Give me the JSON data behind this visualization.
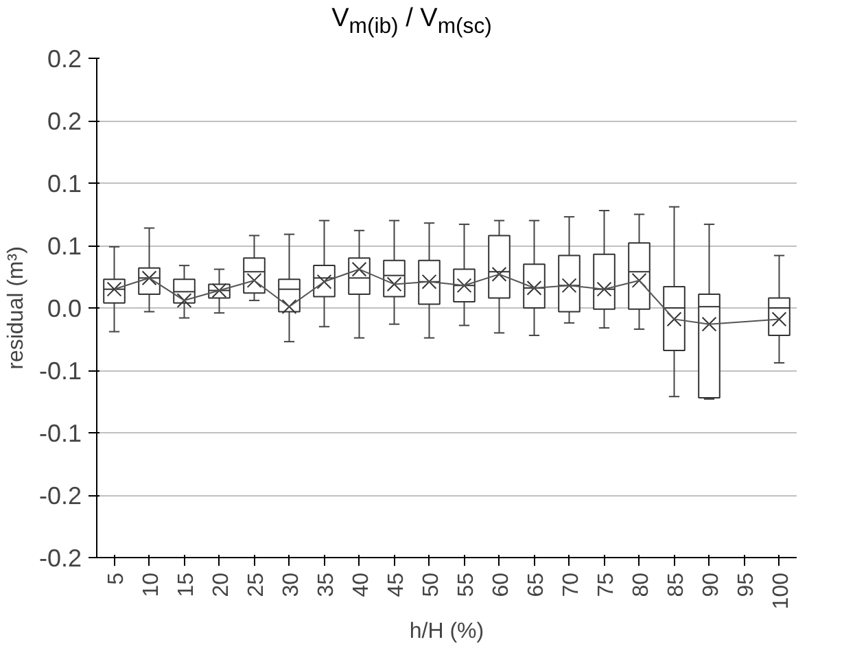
{
  "chart_data": {
    "type": "box",
    "title": "V$_{m(ib)}$ / V$_{m(sc)}$",
    "xlabel": "h/H (%)",
    "ylabel": "residual (m³)",
    "categories": [
      "5",
      "10",
      "15",
      "20",
      "25",
      "30",
      "35",
      "40",
      "45",
      "50",
      "55",
      "60",
      "65",
      "70",
      "75",
      "80",
      "85",
      "90",
      "95",
      "100"
    ],
    "boxes": [
      {
        "low": -0.019,
        "q1": 0.004,
        "median": 0.015,
        "q3": 0.023,
        "high": 0.049,
        "mean": 0.015
      },
      {
        "low": -0.003,
        "q1": 0.011,
        "median": 0.024,
        "q3": 0.032,
        "high": 0.064,
        "mean": 0.024
      },
      {
        "low": -0.008,
        "q1": 0.004,
        "median": 0.013,
        "q3": 0.023,
        "high": 0.034,
        "mean": 0.006
      },
      {
        "low": -0.004,
        "q1": 0.008,
        "median": 0.014,
        "q3": 0.019,
        "high": 0.031,
        "mean": 0.014
      },
      {
        "low": 0.006,
        "q1": 0.012,
        "median": 0.029,
        "q3": 0.04,
        "high": 0.058,
        "mean": 0.022
      },
      {
        "low": -0.027,
        "q1": -0.003,
        "median": 0.015,
        "q3": 0.023,
        "high": 0.059,
        "mean": 0.001
      },
      {
        "low": -0.015,
        "q1": 0.009,
        "median": 0.024,
        "q3": 0.034,
        "high": 0.07,
        "mean": 0.021
      },
      {
        "low": -0.024,
        "q1": 0.011,
        "median": 0.024,
        "q3": 0.04,
        "high": 0.062,
        "mean": 0.031
      },
      {
        "low": -0.013,
        "q1": 0.009,
        "median": 0.026,
        "q3": 0.038,
        "high": 0.07,
        "mean": 0.019
      },
      {
        "low": -0.024,
        "q1": 0.003,
        "median": 0.021,
        "q3": 0.038,
        "high": 0.068,
        "mean": 0.021
      },
      {
        "low": -0.014,
        "q1": 0.005,
        "median": 0.018,
        "q3": 0.031,
        "high": 0.067,
        "mean": 0.018
      },
      {
        "low": -0.02,
        "q1": 0.008,
        "median": 0.029,
        "q3": 0.058,
        "high": 0.07,
        "mean": 0.027
      },
      {
        "low": -0.022,
        "q1": 0,
        "median": 0.016,
        "q3": 0.035,
        "high": 0.07,
        "mean": 0.016
      },
      {
        "low": -0.012,
        "q1": -0.003,
        "median": 0.018,
        "q3": 0.042,
        "high": 0.073,
        "mean": 0.018
      },
      {
        "low": -0.016,
        "q1": -0.001,
        "median": 0.015,
        "q3": 0.043,
        "high": 0.078,
        "mean": 0.015
      },
      {
        "low": -0.017,
        "q1": -0.001,
        "median": 0.029,
        "q3": 0.052,
        "high": 0.075,
        "mean": 0.022
      },
      {
        "low": -0.071,
        "q1": -0.034,
        "median": 0,
        "q3": 0.017,
        "high": 0.081,
        "mean": -0.009
      },
      {
        "low": -0.073,
        "q1": -0.072,
        "median": 0.001,
        "q3": 0.011,
        "high": 0.067,
        "mean": -0.013
      },
      null,
      {
        "low": -0.044,
        "q1": -0.022,
        "median": 0,
        "q3": 0.008,
        "high": 0.042,
        "mean": -0.009
      }
    ],
    "ylim": [
      -0.2,
      0.2
    ],
    "yticks": [
      {
        "value": -0.2,
        "label": "-0.2"
      },
      {
        "value": -0.15,
        "label": "-0.2"
      },
      {
        "value": -0.1,
        "label": "-0.1"
      },
      {
        "value": -0.05,
        "label": "-0.1"
      },
      {
        "value": 0,
        "label": "0.0"
      },
      {
        "value": 0.05,
        "label": "0.1"
      },
      {
        "value": 0.1,
        "label": "0.1"
      },
      {
        "value": 0.15,
        "label": "0.2"
      },
      {
        "value": 0.2,
        "label": "0.2"
      }
    ],
    "series": [
      {
        "type": "line",
        "color": "#555555",
        "values": [
          0.015,
          0.024,
          0.006,
          0.014,
          0.022,
          0.001,
          0.021,
          0.031,
          0.019,
          0.021,
          0.018,
          0.027,
          0.016,
          0.018,
          0.015,
          0.022,
          -0.009,
          -0.013,
          null,
          -0.009
        ]
      }
    ],
    "grid": "y"
  }
}
